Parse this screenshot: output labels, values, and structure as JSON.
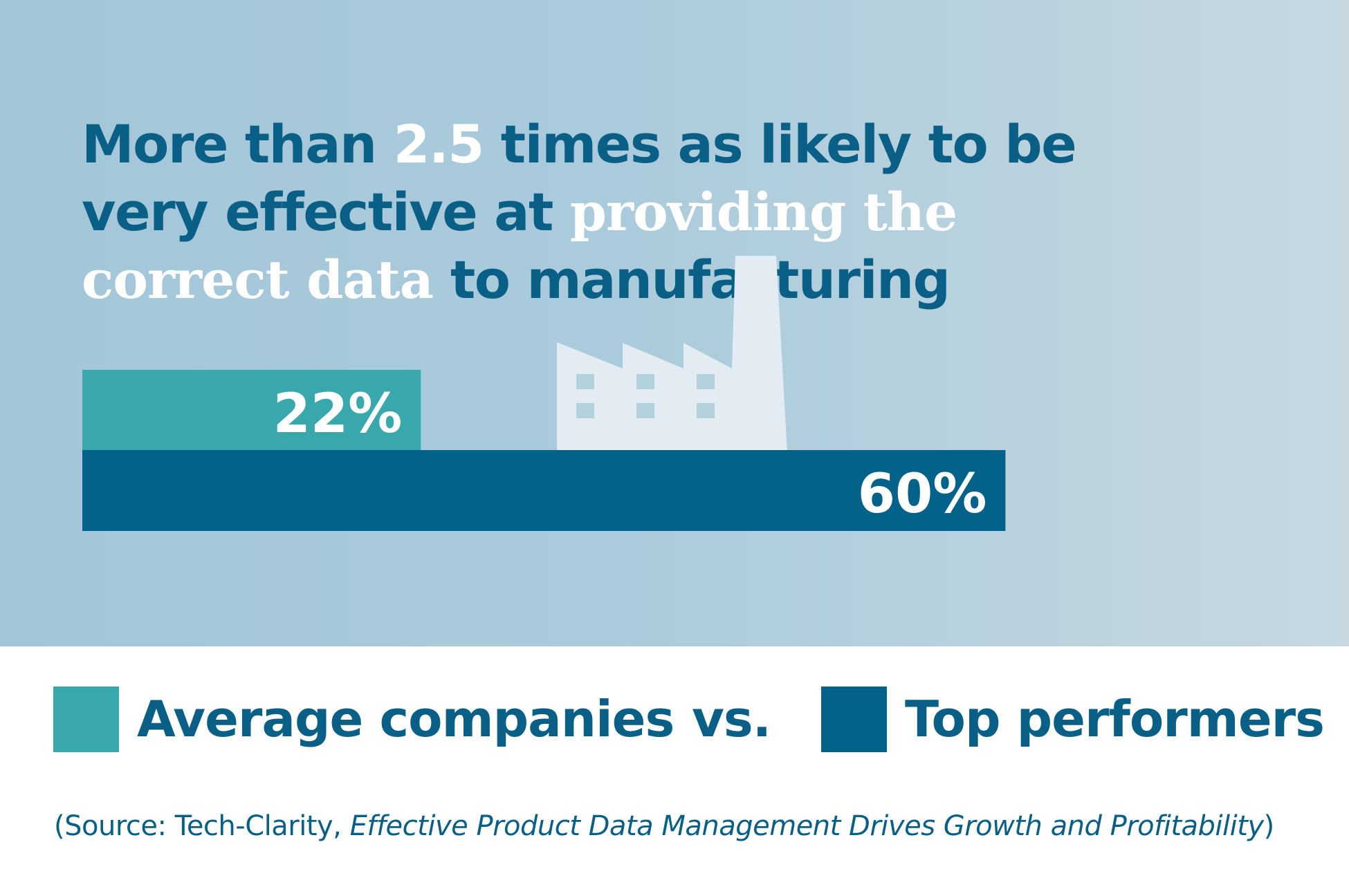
{
  "colors": {
    "average": "#39a8ac",
    "top": "#02628a",
    "title": "#0a5f86",
    "highlight": "#ffffff",
    "factory": "#e3ecf3"
  },
  "title": {
    "part1": "More than ",
    "highlight1": "2.5",
    "part2": " times as likely to be very effective at ",
    "highlight2": "providing the correct data",
    "part3": " to manufacturing"
  },
  "chart_data": {
    "type": "bar",
    "orientation": "horizontal",
    "unit": "%",
    "series": [
      {
        "name": "Average companies",
        "value": 22,
        "label": "22%",
        "color": "#39a8ac"
      },
      {
        "name": "Top performers",
        "value": 60,
        "label": "60%",
        "color": "#02628a"
      }
    ]
  },
  "legend": {
    "average_label": "Average companies",
    "vs_label": "vs.",
    "top_label": "Top performers"
  },
  "source": {
    "prefix": "(Source: Tech-Clarity, ",
    "title": "Effective Product Data Management Drives Growth and Profitability",
    "suffix": ")"
  }
}
